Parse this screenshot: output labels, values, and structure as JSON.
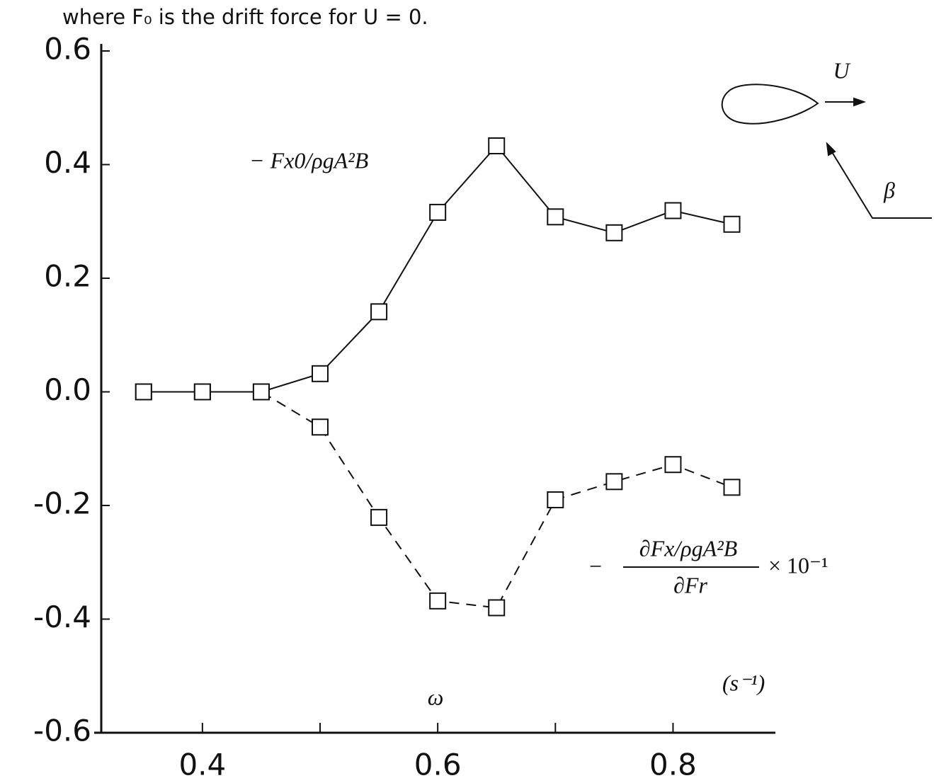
{
  "chart_data": {
    "type": "line",
    "caption": "where F₀ is the drift force for U = 0.",
    "x_label": "ω",
    "x_unit": "(s⁻¹)",
    "x": [
      0.35,
      0.4,
      0.45,
      0.5,
      0.55,
      0.6,
      0.65,
      0.7,
      0.75,
      0.8,
      0.85
    ],
    "series": [
      {
        "name": "− Fx0/ρgA²B",
        "color": "#111111",
        "line_style": "solid",
        "values": [
          0,
          0,
          0,
          0.032,
          0.141,
          0.316,
          0.433,
          0.308,
          0.28,
          0.319,
          0.295
        ]
      },
      {
        "color": "#111111",
        "line_style": "dashed",
        "values": [
          0,
          0,
          0,
          -0.062,
          -0.221,
          -0.368,
          -0.38,
          -0.19,
          -0.158,
          -0.128,
          -0.168
        ]
      }
    ],
    "annotations": {
      "minus": "−",
      "numerator": "∂Fx/ρgA²B",
      "denominator": "∂Fr",
      "factor": "× 10⁻¹",
      "speed": "U",
      "angle": "β"
    },
    "xlim": [
      0.308,
      0.887
    ],
    "xticks": [
      {
        "value": 0.4,
        "label": "0.4"
      },
      {
        "value": 0.5,
        "label": null
      },
      {
        "value": 0.6,
        "label": "0.6"
      },
      {
        "value": 0.7,
        "label": null
      },
      {
        "value": 0.8,
        "label": "0.8"
      }
    ],
    "ylim": [
      -0.6,
      0.6
    ],
    "yticks": [
      0.6,
      0.4,
      0.2,
      {
        "value": 0,
        "label": "0.0"
      },
      -0.2,
      -0.4,
      -0.6
    ],
    "grid": false
  }
}
